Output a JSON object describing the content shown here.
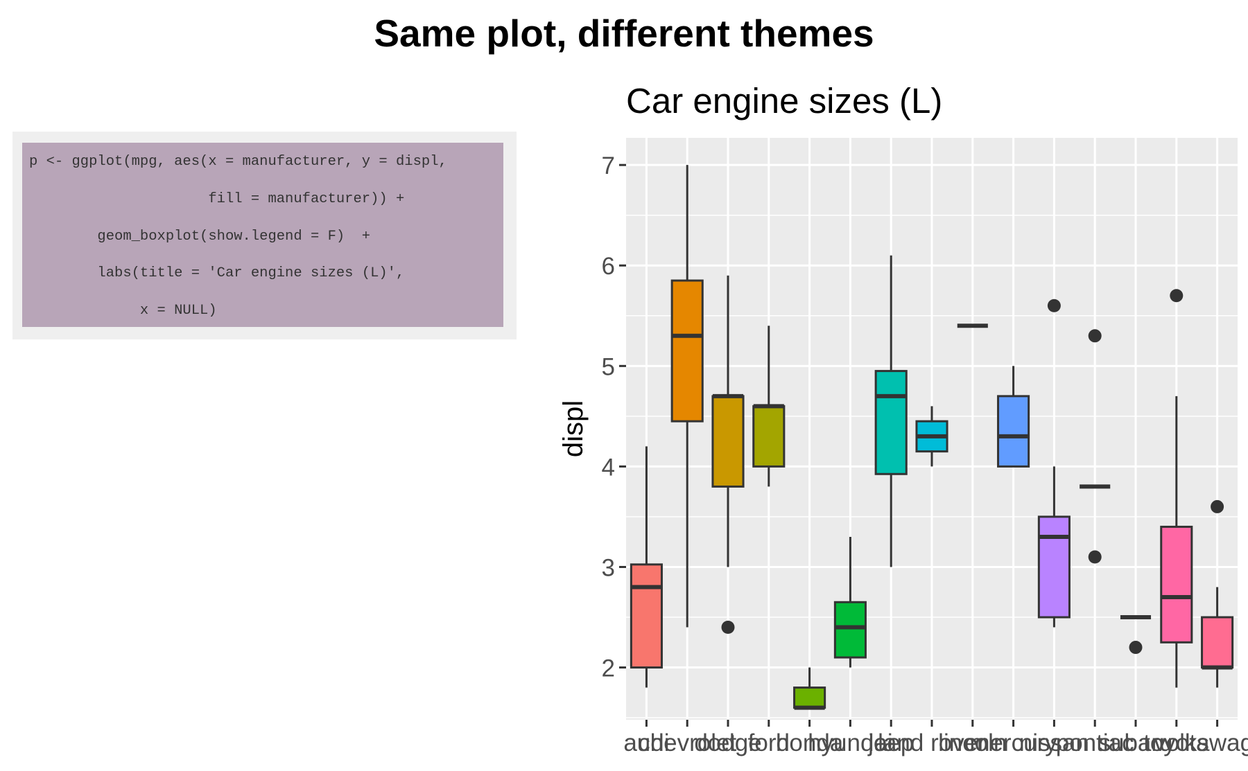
{
  "page_title": "Same plot, different themes",
  "code_panel": {
    "lines": [
      "p <- ggplot(mpg, aes(x = manufacturer, y = displ,",
      "                     fill = manufacturer)) +",
      "        geom_boxplot(show.legend = F)  +",
      "        labs(title = 'Car engine sizes (L)',",
      "             x = NULL)"
    ]
  },
  "chart_data": {
    "type": "boxplot",
    "title": "Car engine sizes (L)",
    "xlabel": "",
    "ylabel": "displ",
    "ylim": [
      1.48,
      7.27
    ],
    "yticks": [
      2,
      3,
      4,
      5,
      6,
      7
    ],
    "ytick_labels": [
      "2",
      "3",
      "4",
      "5",
      "6",
      "7"
    ],
    "grid": true,
    "legend": "none",
    "categories": [
      "audi",
      "chevrolet",
      "dodge",
      "ford",
      "honda",
      "hyundai",
      "jeep",
      "land rover",
      "lincoln",
      "mercury",
      "nissan",
      "pontiac",
      "subaru",
      "toyota",
      "volkswagen"
    ],
    "colors": [
      "#F8766D",
      "#E58700",
      "#C99800",
      "#A3A500",
      "#6BB100",
      "#00BA38",
      "#00C0AF",
      "#00BCD8",
      "#00B0F6",
      "#619CFF",
      "#B983FF",
      "#E76BF3",
      "#FD61D1",
      "#FF67A4",
      "#FF6C91"
    ],
    "boxes": [
      {
        "whisker_low": 1.8,
        "q1": 2.0,
        "median": 2.8,
        "q3": 3.025,
        "whisker_high": 4.2,
        "outliers": []
      },
      {
        "whisker_low": 2.4,
        "q1": 4.45,
        "median": 5.3,
        "q3": 5.85,
        "whisker_high": 7.0,
        "outliers": []
      },
      {
        "whisker_low": 3.0,
        "q1": 3.8,
        "median": 4.7,
        "q3": 4.7,
        "whisker_high": 5.9,
        "outliers": [
          2.4
        ]
      },
      {
        "whisker_low": 3.8,
        "q1": 4.0,
        "median": 4.6,
        "q3": 4.6,
        "whisker_high": 5.4,
        "outliers": []
      },
      {
        "whisker_low": 1.6,
        "q1": 1.6,
        "median": 1.6,
        "q3": 1.8,
        "whisker_high": 2.0,
        "outliers": []
      },
      {
        "whisker_low": 2.0,
        "q1": 2.1,
        "median": 2.4,
        "q3": 2.65,
        "whisker_high": 3.3,
        "outliers": []
      },
      {
        "whisker_low": 3.0,
        "q1": 3.925,
        "median": 4.7,
        "q3": 4.95,
        "whisker_high": 6.1,
        "outliers": []
      },
      {
        "whisker_low": 4.0,
        "q1": 4.15,
        "median": 4.3,
        "q3": 4.45,
        "whisker_high": 4.6,
        "outliers": []
      },
      {
        "whisker_low": 5.4,
        "q1": 5.4,
        "median": 5.4,
        "q3": 5.4,
        "whisker_high": 5.4,
        "outliers": []
      },
      {
        "whisker_low": 4.0,
        "q1": 4.0,
        "median": 4.3,
        "q3": 4.7,
        "whisker_high": 5.0,
        "outliers": []
      },
      {
        "whisker_low": 2.4,
        "q1": 2.5,
        "median": 3.3,
        "q3": 3.5,
        "whisker_high": 4.0,
        "outliers": [
          5.6
        ]
      },
      {
        "whisker_low": 3.8,
        "q1": 3.8,
        "median": 3.8,
        "q3": 3.8,
        "whisker_high": 3.8,
        "outliers": [
          5.3,
          3.1
        ]
      },
      {
        "whisker_low": 2.5,
        "q1": 2.5,
        "median": 2.5,
        "q3": 2.5,
        "whisker_high": 2.5,
        "outliers": [
          2.2
        ]
      },
      {
        "whisker_low": 1.8,
        "q1": 2.25,
        "median": 2.7,
        "q3": 3.4,
        "whisker_high": 4.7,
        "outliers": [
          5.7
        ]
      },
      {
        "whisker_low": 1.8,
        "q1": 2.0,
        "median": 2.0,
        "q3": 2.5,
        "whisker_high": 2.8,
        "outliers": [
          3.6
        ]
      }
    ]
  }
}
